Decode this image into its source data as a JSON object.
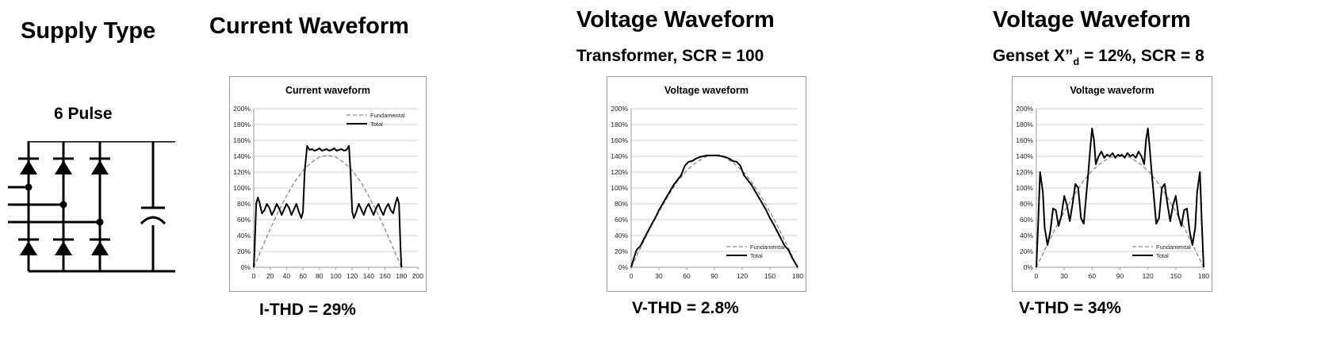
{
  "headings": {
    "supply_type": "Supply Type",
    "current_waveform": "Current Waveform",
    "voltage_waveform_1": "Voltage Waveform",
    "voltage_waveform_2": "Voltage Waveform"
  },
  "subheadings": {
    "pulse": "6 Pulse",
    "transformer": "Transformer, SCR = 100",
    "genset_prefix": "Genset X”",
    "genset_sub": "d",
    "genset_suffix": " = 12%, SCR = 8"
  },
  "thd": {
    "current": "I-THD = 29%",
    "voltage1": "V-THD = 2.8%",
    "voltage2": "V-THD = 34%"
  },
  "colors": {
    "fundamental": "#888888",
    "total": "#000000",
    "grid": "#d0d0d0"
  },
  "chart_data": [
    {
      "type": "line",
      "title": "Current waveform",
      "xlim": [
        0,
        200
      ],
      "xticks": [
        "0",
        "20",
        "40",
        "60",
        "80",
        "100",
        "120",
        "140",
        "160",
        "180",
        "200"
      ],
      "ylim": [
        0,
        200
      ],
      "yticks": [
        "0%",
        "20%",
        "40%",
        "60%",
        "80%",
        "100%",
        "120%",
        "140%",
        "160%",
        "180%",
        "200%"
      ],
      "grid": true,
      "legend_position": "top-right",
      "series": [
        {
          "name": "Fundamental",
          "style": "dashed",
          "x": [
            0,
            10,
            20,
            30,
            40,
            50,
            60,
            70,
            80,
            90,
            100,
            110,
            120,
            130,
            140,
            150,
            160,
            170,
            180
          ],
          "y": [
            0,
            24,
            48,
            70,
            90,
            108,
            122,
            132,
            139,
            141,
            139,
            132,
            122,
            108,
            90,
            70,
            48,
            24,
            0
          ]
        },
        {
          "name": "Total",
          "style": "solid",
          "x": [
            0,
            1,
            3,
            5,
            7,
            10,
            13,
            16,
            19,
            22,
            25,
            28,
            31,
            34,
            37,
            40,
            43,
            46,
            49,
            52,
            55,
            58,
            60,
            62,
            65,
            68,
            71,
            74,
            77,
            80,
            83,
            86,
            89,
            92,
            95,
            98,
            101,
            104,
            107,
            110,
            113,
            116,
            118,
            120,
            122,
            125,
            128,
            131,
            134,
            137,
            140,
            143,
            146,
            149,
            152,
            155,
            158,
            161,
            164,
            167,
            170,
            173,
            175,
            177,
            179,
            180
          ],
          "y": [
            0,
            20,
            80,
            88,
            82,
            68,
            72,
            80,
            75,
            66,
            72,
            80,
            74,
            66,
            73,
            80,
            75,
            66,
            73,
            80,
            70,
            62,
            70,
            120,
            153,
            148,
            149,
            147,
            148,
            150,
            147,
            148,
            149,
            147,
            148,
            150,
            147,
            148,
            149,
            147,
            148,
            153,
            120,
            70,
            62,
            70,
            80,
            73,
            66,
            75,
            80,
            73,
            66,
            74,
            80,
            72,
            66,
            75,
            80,
            72,
            68,
            82,
            88,
            80,
            20,
            0
          ]
        }
      ]
    },
    {
      "type": "line",
      "title": "Voltage waveform",
      "xlim": [
        0,
        180
      ],
      "xticks": [
        "0",
        "30",
        "60",
        "90",
        "120",
        "150",
        "180"
      ],
      "ylim": [
        0,
        200
      ],
      "yticks": [
        "0%",
        "20%",
        "40%",
        "60%",
        "80%",
        "100%",
        "120%",
        "140%",
        "160%",
        "180%",
        "200%"
      ],
      "grid": true,
      "legend_position": "bottom-right",
      "series": [
        {
          "name": "Fundamental",
          "style": "dashed",
          "x": [
            0,
            10,
            20,
            30,
            40,
            50,
            60,
            70,
            80,
            90,
            100,
            110,
            120,
            130,
            140,
            150,
            160,
            170,
            180
          ],
          "y": [
            0,
            24,
            48,
            70,
            90,
            108,
            122,
            132,
            139,
            141,
            139,
            132,
            122,
            108,
            90,
            70,
            48,
            24,
            0
          ]
        },
        {
          "name": "Total",
          "style": "solid",
          "x": [
            0,
            3,
            6,
            10,
            14,
            18,
            22,
            26,
            30,
            34,
            38,
            42,
            46,
            50,
            54,
            58,
            62,
            66,
            70,
            74,
            78,
            82,
            86,
            90,
            94,
            98,
            102,
            106,
            110,
            114,
            118,
            122,
            126,
            130,
            134,
            138,
            142,
            146,
            150,
            154,
            158,
            162,
            166,
            170,
            174,
            177,
            180
          ],
          "y": [
            0,
            12,
            22,
            27,
            36,
            45,
            54,
            62,
            72,
            80,
            88,
            96,
            104,
            110,
            116,
            128,
            133,
            134,
            137,
            139,
            140,
            141,
            141,
            141,
            141,
            140,
            139,
            137,
            134,
            133,
            128,
            116,
            110,
            104,
            96,
            88,
            80,
            72,
            62,
            54,
            45,
            36,
            27,
            22,
            12,
            6,
            0
          ]
        }
      ]
    },
    {
      "type": "line",
      "title": "Voltage waveform",
      "xlim": [
        0,
        180
      ],
      "xticks": [
        "0",
        "30",
        "60",
        "90",
        "120",
        "150",
        "180"
      ],
      "ylim": [
        0,
        200
      ],
      "yticks": [
        "0%",
        "20%",
        "40%",
        "60%",
        "80%",
        "100%",
        "120%",
        "140%",
        "160%",
        "180%",
        "200%"
      ],
      "grid": true,
      "legend_position": "bottom-right",
      "series": [
        {
          "name": "Fundamental",
          "style": "dashed",
          "x": [
            0,
            10,
            20,
            30,
            40,
            50,
            60,
            70,
            80,
            90,
            100,
            110,
            120,
            130,
            140,
            150,
            160,
            170,
            180
          ],
          "y": [
            0,
            24,
            48,
            70,
            90,
            108,
            122,
            132,
            139,
            141,
            139,
            132,
            122,
            108,
            90,
            70,
            48,
            24,
            0
          ]
        },
        {
          "name": "Total",
          "style": "solid",
          "x": [
            0,
            2,
            4,
            7,
            9,
            12,
            15,
            18,
            21,
            24,
            27,
            30,
            33,
            36,
            39,
            42,
            45,
            48,
            51,
            54,
            56,
            58,
            60,
            62,
            64,
            67,
            70,
            73,
            76,
            79,
            82,
            85,
            88,
            90,
            92,
            95,
            98,
            101,
            104,
            107,
            110,
            113,
            116,
            118,
            120,
            122,
            124,
            126,
            129,
            132,
            135,
            138,
            141,
            144,
            147,
            150,
            153,
            156,
            159,
            162,
            165,
            168,
            171,
            173,
            176,
            178,
            180
          ],
          "y": [
            0,
            55,
            120,
            95,
            50,
            28,
            45,
            74,
            72,
            52,
            65,
            90,
            78,
            58,
            80,
            105,
            100,
            62,
            55,
            95,
            120,
            150,
            175,
            160,
            130,
            140,
            146,
            138,
            142,
            140,
            144,
            138,
            142,
            140,
            142,
            138,
            144,
            140,
            142,
            138,
            146,
            140,
            130,
            160,
            175,
            150,
            120,
            95,
            55,
            62,
            100,
            105,
            80,
            58,
            78,
            90,
            65,
            52,
            72,
            74,
            45,
            28,
            50,
            95,
            120,
            55,
            0
          ]
        }
      ]
    }
  ]
}
